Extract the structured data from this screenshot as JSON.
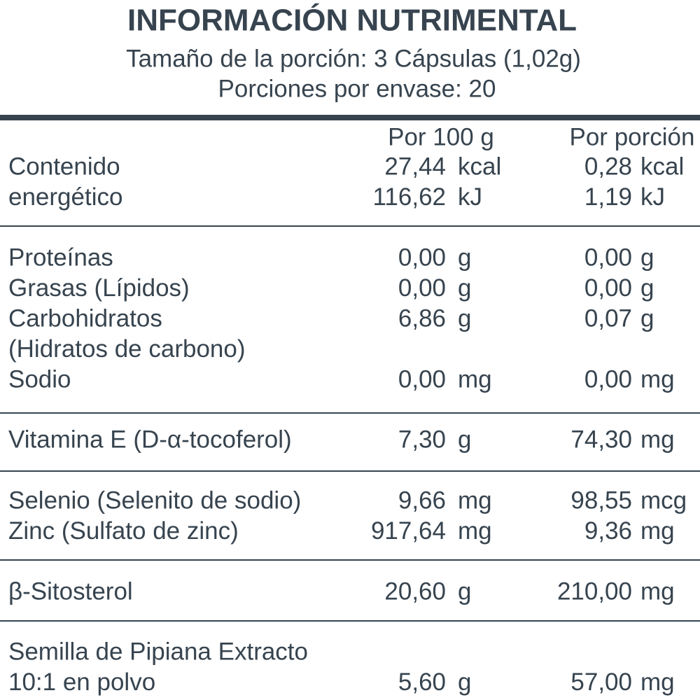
{
  "header": {
    "title": "INFORMACIÓN NUTRIMENTAL",
    "serving_size": "Tamaño de la porción: 3 Cápsulas (1,02g)",
    "servings_per_container": "Porciones por envase: 20"
  },
  "table": {
    "columns": [
      "Por 100 g",
      "Por porción"
    ],
    "sections": [
      {
        "lines": [
          {
            "label": "Contenido",
            "per_100g": "27,44",
            "per_100g_unit": "kcal",
            "per_serving": "0,28",
            "per_serving_unit": "kcal"
          },
          {
            "label": "energético",
            "per_100g": "116,62",
            "per_100g_unit": "kJ",
            "per_serving": "1,19",
            "per_serving_unit": "kJ"
          }
        ]
      },
      {
        "lines": [
          {
            "label": "Proteínas",
            "per_100g": "0,00",
            "per_100g_unit": "g",
            "per_serving": "0,00",
            "per_serving_unit": "g"
          },
          {
            "label": "Grasas (Lípidos)",
            "per_100g": "0,00",
            "per_100g_unit": "g",
            "per_serving": "0,00",
            "per_serving_unit": "g"
          },
          {
            "label": "Carbohidratos",
            "per_100g": "6,86",
            "per_100g_unit": "g",
            "per_serving": "0,07",
            "per_serving_unit": "g"
          },
          {
            "label": "(Hidratos de carbono)"
          },
          {
            "label": "Sodio",
            "per_100g": "0,00",
            "per_100g_unit": "mg",
            "per_serving": "0,00",
            "per_serving_unit": "mg"
          }
        ]
      },
      {
        "lines": [
          {
            "label": "Vitamina E (D-α-tocoferol)",
            "per_100g": "7,30",
            "per_100g_unit": "g",
            "per_serving": "74,30",
            "per_serving_unit": "mg"
          }
        ]
      },
      {
        "lines": [
          {
            "label": "Selenio (Selenito de sodio)",
            "per_100g": "9,66",
            "per_100g_unit": "mg",
            "per_serving": "98,55",
            "per_serving_unit": "mcg"
          },
          {
            "label": "Zinc (Sulfato de zinc)",
            "per_100g": "917,64",
            "per_100g_unit": "mg",
            "per_serving": "9,36",
            "per_serving_unit": "mg"
          }
        ]
      },
      {
        "lines": [
          {
            "label": "β-Sitosterol",
            "per_100g": "20,60",
            "per_100g_unit": "g",
            "per_serving": "210,00",
            "per_serving_unit": "mg"
          }
        ]
      },
      {
        "lines": [
          {
            "label": "Semilla de Pipiana Extracto"
          },
          {
            "label": "10:1 en polvo",
            "per_100g": "5,60",
            "per_100g_unit": "g",
            "per_serving": "57,00",
            "per_serving_unit": "mg"
          }
        ]
      }
    ]
  }
}
